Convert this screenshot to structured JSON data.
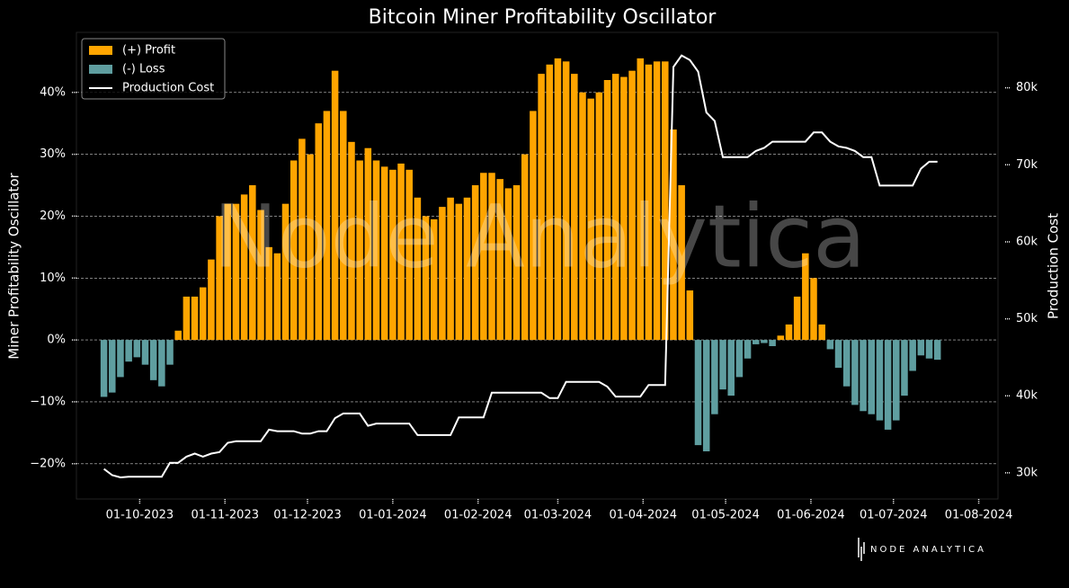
{
  "chart_data": {
    "type": "bar",
    "title": "Bitcoin Miner Profitability Oscillator",
    "watermark": "Node Analytica",
    "brand": "NODE ANALYTICA",
    "y_label": "Miner Profitability Oscillator",
    "y2_label": "Production Cost",
    "legend": "upper left",
    "grid": true,
    "xlim": [
      "2023-09-08",
      "2024-08-08"
    ],
    "xticks": [
      {
        "value": "2023-10-01",
        "label": "01-10-2023"
      },
      {
        "value": "2023-11-01",
        "label": "01-11-2023"
      },
      {
        "value": "2023-12-01",
        "label": "01-12-2023"
      },
      {
        "value": "2024-01-01",
        "label": "01-01-2024"
      },
      {
        "value": "2024-02-01",
        "label": "01-02-2024"
      },
      {
        "value": "2024-03-01",
        "label": "01-03-2024"
      },
      {
        "value": "2024-04-01",
        "label": "01-04-2024"
      },
      {
        "value": "2024-05-01",
        "label": "01-05-2024"
      },
      {
        "value": "2024-06-01",
        "label": "01-06-2024"
      },
      {
        "value": "2024-07-01",
        "label": "01-07-2024"
      },
      {
        "value": "2024-08-01",
        "label": "01-08-2024"
      }
    ],
    "ylim": [
      -25.7,
      49.7
    ],
    "yticks": [
      {
        "value": -20,
        "label": "−20%"
      },
      {
        "value": -10,
        "label": "−10%"
      },
      {
        "value": 0,
        "label": "0%"
      },
      {
        "value": 10,
        "label": "10%"
      },
      {
        "value": 20,
        "label": "20%"
      },
      {
        "value": 30,
        "label": "30%"
      },
      {
        "value": 40,
        "label": "40%"
      }
    ],
    "y2lim": [
      26600,
      87200
    ],
    "y2ticks": [
      {
        "value": 30000,
        "label": "30k"
      },
      {
        "value": 40000,
        "label": "40k"
      },
      {
        "value": 50000,
        "label": "50k"
      },
      {
        "value": 60000,
        "label": "60k"
      },
      {
        "value": 70000,
        "label": "70k"
      },
      {
        "value": 80000,
        "label": "80k"
      }
    ],
    "x": [
      "2023-09-18",
      "2023-09-21",
      "2023-09-24",
      "2023-09-27",
      "2023-09-30",
      "2023-10-03",
      "2023-10-06",
      "2023-10-09",
      "2023-10-12",
      "2023-10-15",
      "2023-10-18",
      "2023-10-21",
      "2023-10-24",
      "2023-10-27",
      "2023-10-30",
      "2023-11-02",
      "2023-11-05",
      "2023-11-08",
      "2023-11-11",
      "2023-11-14",
      "2023-11-17",
      "2023-11-20",
      "2023-11-23",
      "2023-11-26",
      "2023-11-29",
      "2023-12-02",
      "2023-12-05",
      "2023-12-08",
      "2023-12-11",
      "2023-12-14",
      "2023-12-17",
      "2023-12-20",
      "2023-12-23",
      "2023-12-26",
      "2023-12-29",
      "2024-01-01",
      "2024-01-04",
      "2024-01-07",
      "2024-01-10",
      "2024-01-13",
      "2024-01-16",
      "2024-01-19",
      "2024-01-22",
      "2024-01-25",
      "2024-01-28",
      "2024-01-31",
      "2024-02-03",
      "2024-02-06",
      "2024-02-09",
      "2024-02-12",
      "2024-02-15",
      "2024-02-18",
      "2024-02-21",
      "2024-02-24",
      "2024-02-27",
      "2024-03-01",
      "2024-03-04",
      "2024-03-07",
      "2024-03-10",
      "2024-03-13",
      "2024-03-16",
      "2024-03-19",
      "2024-03-22",
      "2024-03-25",
      "2024-03-28",
      "2024-03-31",
      "2024-04-03",
      "2024-04-06",
      "2024-04-09",
      "2024-04-12",
      "2024-04-15",
      "2024-04-18",
      "2024-04-21",
      "2024-04-24",
      "2024-04-27",
      "2024-04-30",
      "2024-05-03",
      "2024-05-06",
      "2024-05-09",
      "2024-05-12",
      "2024-05-15",
      "2024-05-18",
      "2024-05-21",
      "2024-05-24",
      "2024-05-27",
      "2024-05-30",
      "2024-06-02",
      "2024-06-05",
      "2024-06-08",
      "2024-06-11",
      "2024-06-14",
      "2024-06-17",
      "2024-06-20",
      "2024-06-23",
      "2024-06-26",
      "2024-06-29",
      "2024-07-02",
      "2024-07-05",
      "2024-07-08",
      "2024-07-11",
      "2024-07-14",
      "2024-07-17"
    ],
    "series": [
      {
        "name": "(+) Profit",
        "color": "#ffa500",
        "type": "bar",
        "values": [
          null,
          null,
          null,
          null,
          null,
          null,
          null,
          null,
          null,
          1.5,
          7,
          7,
          8.5,
          13,
          20,
          22,
          22,
          23.5,
          25,
          21,
          15,
          14,
          22,
          29,
          32.5,
          30,
          35,
          37,
          43.5,
          37,
          32,
          29,
          31,
          29,
          28,
          27.5,
          28.5,
          27.5,
          23,
          20,
          19.5,
          21.5,
          23,
          22,
          23,
          25,
          27,
          27,
          26,
          24.5,
          25,
          30,
          37,
          43,
          44.5,
          45.5,
          45,
          43,
          40,
          39,
          40,
          42,
          43,
          42.5,
          43.5,
          45.5,
          44.5,
          45,
          45,
          34,
          25,
          8,
          null,
          null,
          null,
          null,
          null,
          null,
          null,
          null,
          null,
          null,
          0.7,
          2.5,
          7,
          14,
          10,
          2.5,
          null,
          null,
          null,
          null,
          null,
          null,
          null,
          null,
          null,
          null,
          null,
          null,
          null,
          null
        ]
      },
      {
        "name": "(-) Loss",
        "color": "#5f9ea0",
        "type": "bar",
        "values": [
          -9.2,
          -8.5,
          -6,
          -3.5,
          -2.8,
          -4,
          -6.5,
          -7.5,
          -4,
          null,
          null,
          null,
          null,
          null,
          null,
          null,
          null,
          null,
          null,
          null,
          null,
          null,
          null,
          null,
          null,
          null,
          null,
          null,
          null,
          null,
          null,
          null,
          null,
          null,
          null,
          null,
          null,
          null,
          null,
          null,
          null,
          null,
          null,
          null,
          null,
          null,
          null,
          null,
          null,
          null,
          null,
          null,
          null,
          null,
          null,
          null,
          null,
          null,
          null,
          null,
          null,
          null,
          null,
          null,
          null,
          null,
          null,
          null,
          null,
          null,
          null,
          null,
          -17,
          -18,
          -12,
          -8,
          -9,
          -6,
          -3,
          -0.7,
          -0.5,
          -1,
          null,
          null,
          null,
          null,
          null,
          null,
          -1.5,
          -4.5,
          -7.5,
          -10.5,
          -11.5,
          -12,
          -13,
          -14.5,
          -13,
          -9,
          -5,
          -2.5,
          -3,
          -3.2
        ]
      },
      {
        "name": "Production Cost",
        "color": "#ffffff",
        "type": "line",
        "axis": "y2",
        "values": [
          30500,
          29700,
          29400,
          29500,
          29500,
          29500,
          29500,
          29500,
          31300,
          31300,
          32100,
          32500,
          32100,
          32500,
          32700,
          33900,
          34100,
          34100,
          34100,
          34100,
          35600,
          35400,
          35400,
          35400,
          35100,
          35100,
          35400,
          35400,
          37100,
          37700,
          37700,
          37700,
          36100,
          36400,
          36400,
          36400,
          36400,
          36400,
          34900,
          34900,
          34900,
          34900,
          34900,
          37200,
          37200,
          37200,
          37200,
          40400,
          40400,
          40400,
          40400,
          40400,
          40400,
          40400,
          39700,
          39700,
          41800,
          41800,
          41800,
          41800,
          41800,
          41200,
          39900,
          39900,
          39900,
          39900,
          41400,
          41400,
          41400,
          82700,
          84200,
          83600,
          82100,
          76800,
          75700,
          71000,
          71000,
          71000,
          71000,
          71800,
          72200,
          73000,
          73000,
          73000,
          73000,
          73000,
          74200,
          74200,
          73000,
          72400,
          72200,
          71800,
          71000,
          71000,
          67300,
          67300,
          67300,
          67300,
          67300,
          69500,
          70400,
          70400
        ]
      }
    ]
  }
}
